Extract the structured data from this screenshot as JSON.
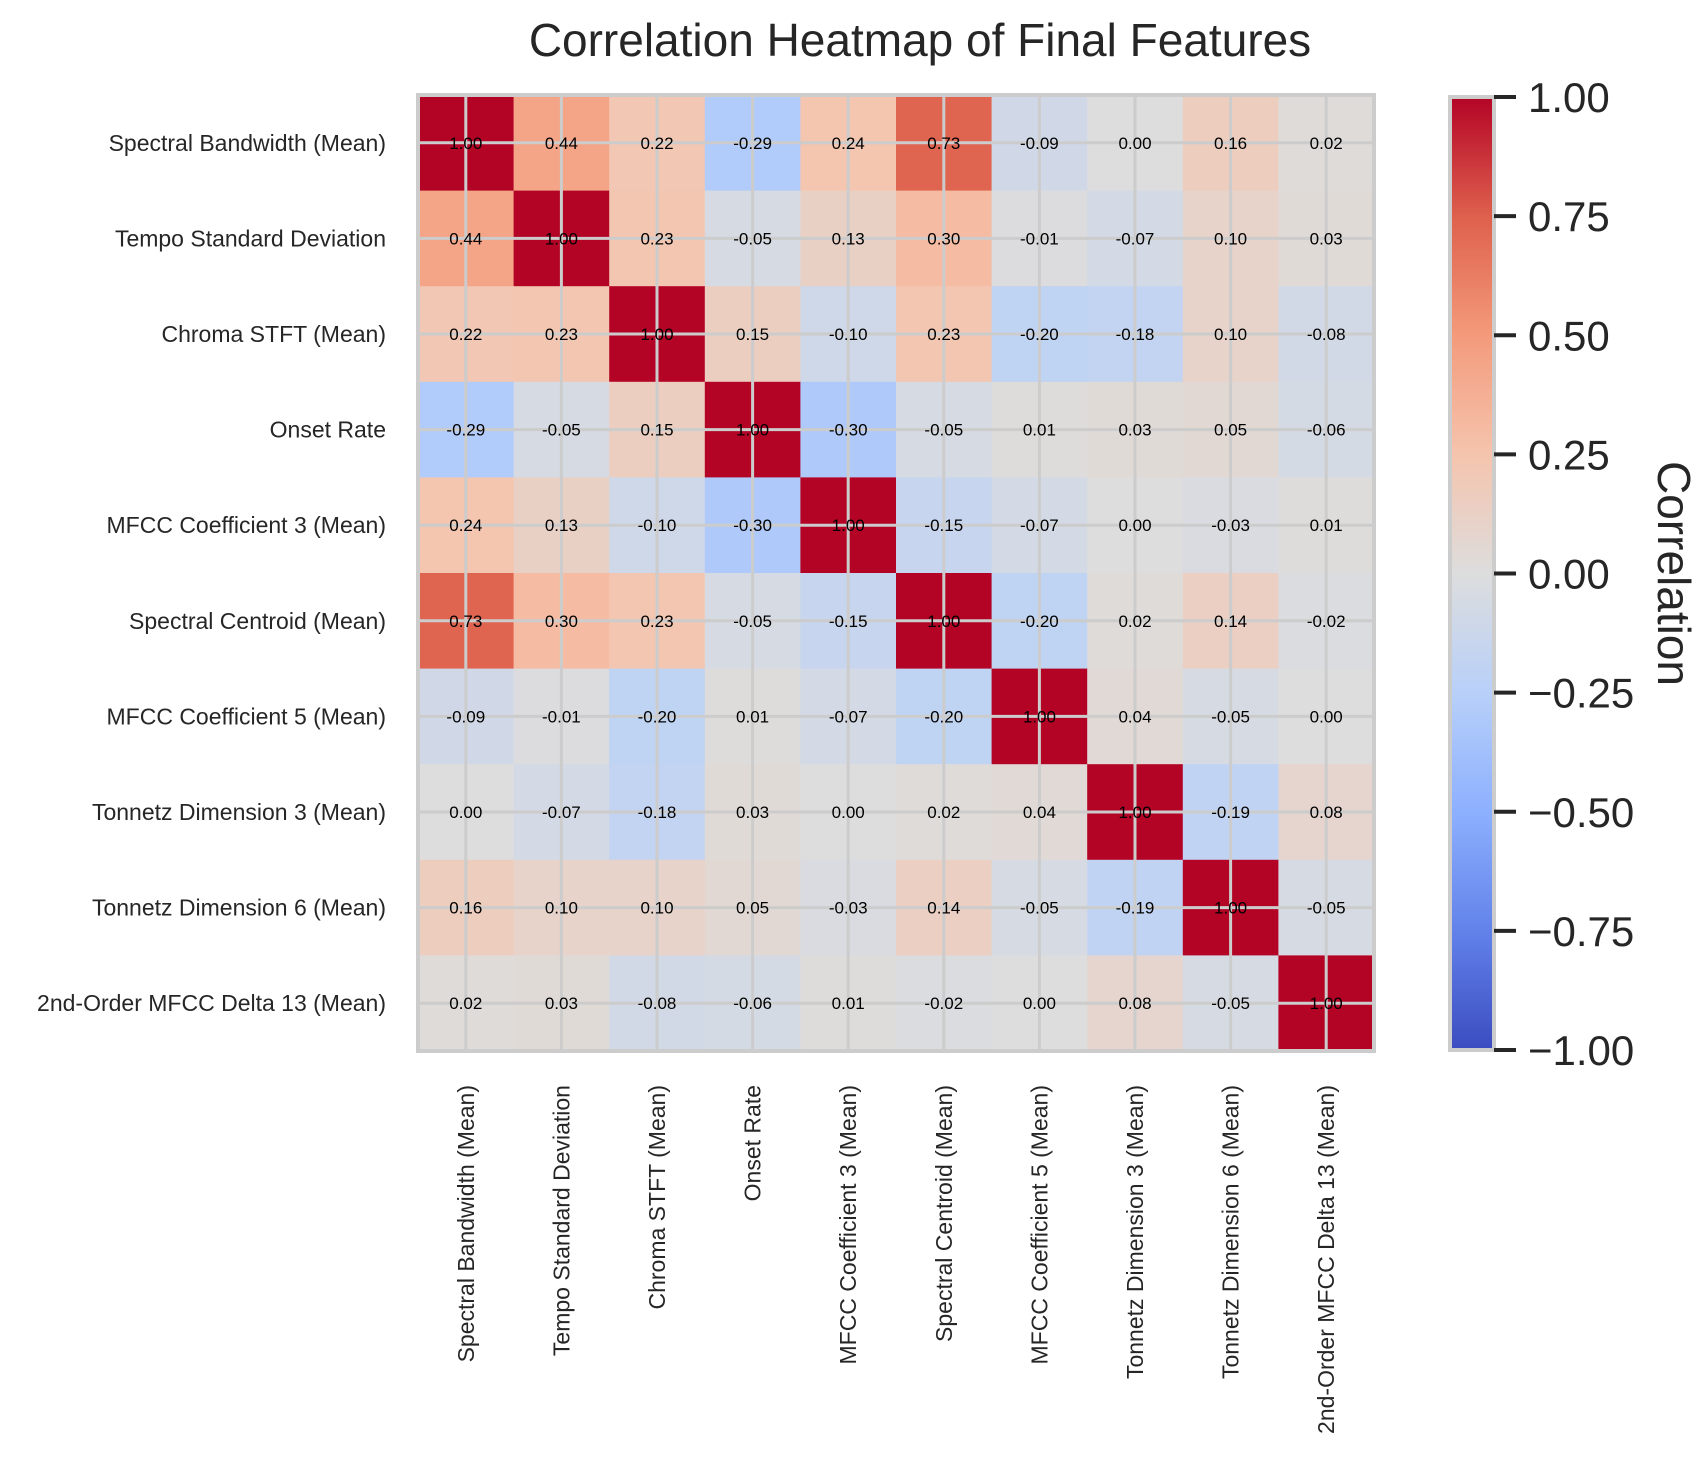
{
  "chart_data": {
    "type": "heatmap",
    "title": "Correlation Heatmap of Final Features",
    "labels": [
      "Spectral Bandwidth (Mean)",
      "Tempo Standard Deviation",
      "Chroma STFT (Mean)",
      "Onset Rate",
      "MFCC Coefficient 3 (Mean)",
      "Spectral Centroid (Mean)",
      "MFCC Coefficient 5 (Mean)",
      "Tonnetz Dimension 3 (Mean)",
      "Tonnetz Dimension 6 (Mean)",
      "2nd-Order MFCC Delta 13 (Mean)"
    ],
    "matrix": [
      [
        1.0,
        0.44,
        0.22,
        -0.29,
        0.24,
        0.73,
        -0.09,
        0.0,
        0.16,
        0.02
      ],
      [
        0.44,
        1.0,
        0.23,
        -0.05,
        0.13,
        0.3,
        -0.01,
        -0.07,
        0.1,
        0.03
      ],
      [
        0.22,
        0.23,
        1.0,
        0.15,
        -0.1,
        0.23,
        -0.2,
        -0.18,
        0.1,
        -0.08
      ],
      [
        -0.29,
        -0.05,
        0.15,
        1.0,
        -0.3,
        -0.05,
        0.01,
        0.03,
        0.05,
        -0.06
      ],
      [
        0.24,
        0.13,
        -0.1,
        -0.3,
        1.0,
        -0.15,
        -0.07,
        -0.0,
        -0.03,
        0.01
      ],
      [
        0.73,
        0.3,
        0.23,
        -0.05,
        -0.15,
        1.0,
        -0.2,
        0.02,
        0.14,
        -0.02
      ],
      [
        -0.09,
        -0.01,
        -0.2,
        0.01,
        -0.07,
        -0.2,
        1.0,
        0.04,
        -0.05,
        0.0
      ],
      [
        0.0,
        -0.07,
        -0.18,
        0.03,
        -0.0,
        0.02,
        0.04,
        1.0,
        -0.19,
        0.08
      ],
      [
        0.16,
        0.1,
        0.1,
        0.05,
        -0.03,
        0.14,
        -0.05,
        -0.19,
        1.0,
        -0.05
      ],
      [
        0.02,
        0.03,
        -0.08,
        -0.06,
        0.01,
        -0.02,
        0.0,
        0.08,
        -0.05,
        1.0
      ]
    ],
    "colorscale": "coolwarm",
    "vmin": -1.0,
    "vmax": 1.0,
    "colorbar_label": "Correlation",
    "colorbar_ticks": [
      1.0,
      0.75,
      0.5,
      0.25,
      0.0,
      -0.25,
      -0.5,
      -0.75,
      -1.0
    ],
    "colorbar_tick_labels": [
      "1.00",
      "0.75",
      "0.50",
      "0.25",
      "0.00",
      "−0.25",
      "−0.50",
      "−0.75",
      "−1.00"
    ],
    "grid": true,
    "annotation_format": "2 decimals"
  }
}
